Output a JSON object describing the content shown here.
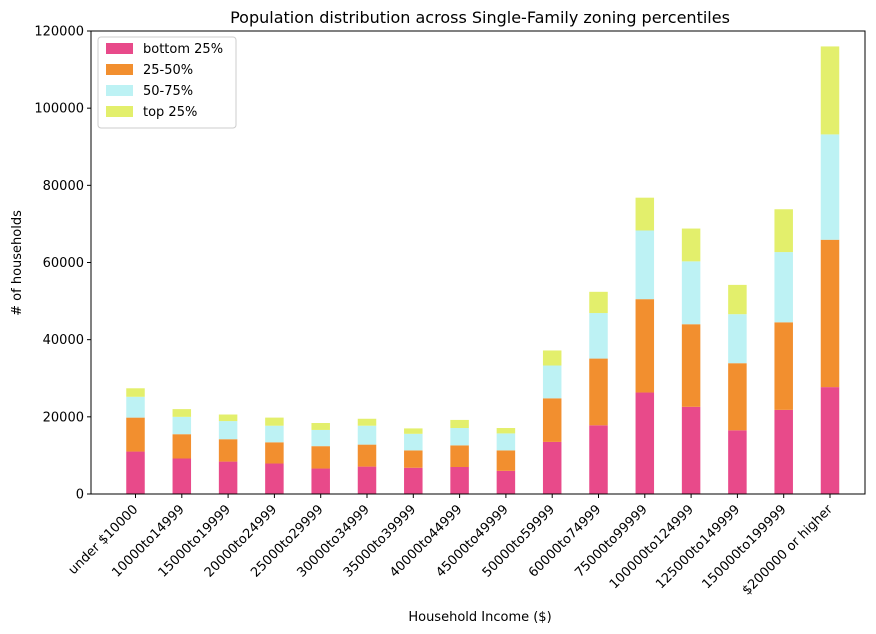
{
  "chart_data": {
    "type": "bar",
    "stacked": true,
    "title": "Population distribution across Single-Family zoning percentiles",
    "xlabel": "Household Income ($)",
    "ylabel": "# of households",
    "ylim": [
      0,
      120000
    ],
    "yticks": [
      0,
      20000,
      40000,
      60000,
      80000,
      100000,
      120000
    ],
    "grid": false,
    "legend_position": "top-left",
    "categories": [
      "under $10000",
      "10000to14999",
      "15000to19999",
      "20000to24999",
      "25000to29999",
      "30000to34999",
      "35000to39999",
      "40000to44999",
      "45000to49999",
      "50000to59999",
      "60000to74999",
      "75000to99999",
      "100000to124999",
      "125000to149999",
      "150000to199999",
      "$200000 or higher"
    ],
    "series": [
      {
        "name": "bottom 25%",
        "color": "#e84a8a",
        "values": [
          11000,
          9200,
          8400,
          7900,
          6600,
          7100,
          6800,
          7000,
          6000,
          13500,
          17800,
          26300,
          22600,
          16500,
          21800,
          27700
        ]
      },
      {
        "name": "25-50%",
        "color": "#f28f2f",
        "values": [
          8800,
          6300,
          5800,
          5500,
          5800,
          5700,
          4500,
          5600,
          5300,
          11300,
          17300,
          24200,
          21400,
          17400,
          22700,
          38200
        ]
      },
      {
        "name": "50-75%",
        "color": "#bdf2f4",
        "values": [
          5400,
          4500,
          4700,
          4300,
          4200,
          4900,
          4300,
          4500,
          4400,
          8500,
          11800,
          17800,
          16300,
          12700,
          18200,
          27300
        ]
      },
      {
        "name": "top 25%",
        "color": "#e3ef6c",
        "values": [
          2200,
          2000,
          1700,
          2100,
          1800,
          1800,
          1400,
          2100,
          1400,
          3900,
          5500,
          8500,
          8500,
          7600,
          11100,
          22800
        ]
      }
    ]
  }
}
